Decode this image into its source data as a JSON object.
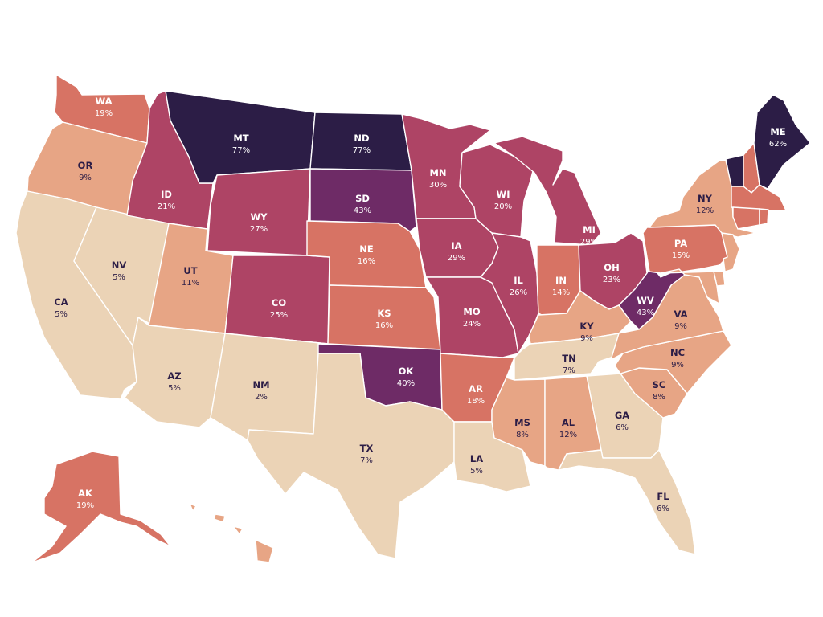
{
  "colors": {
    "t1": "#ebd3b6",
    "t2": "#e7a585",
    "t3": "#d77364",
    "t4": "#ae4465",
    "t5": "#9c3a61",
    "t6": "#6e2b66",
    "t7": "#2c1d46",
    "dark_text": "#2c1d46",
    "light_text": "#ffffff"
  },
  "states": [
    {
      "abbr": "WA",
      "value": "19%",
      "tier": "t3"
    },
    {
      "abbr": "OR",
      "value": "9%",
      "tier": "t2"
    },
    {
      "abbr": "CA",
      "value": "5%",
      "tier": "t1"
    },
    {
      "abbr": "NV",
      "value": "5%",
      "tier": "t1"
    },
    {
      "abbr": "ID",
      "value": "21%",
      "tier": "t4"
    },
    {
      "abbr": "MT",
      "value": "77%",
      "tier": "t7"
    },
    {
      "abbr": "WY",
      "value": "27%",
      "tier": "t4"
    },
    {
      "abbr": "UT",
      "value": "11%",
      "tier": "t2"
    },
    {
      "abbr": "AZ",
      "value": "5%",
      "tier": "t1"
    },
    {
      "abbr": "CO",
      "value": "25%",
      "tier": "t4"
    },
    {
      "abbr": "NM",
      "value": "2%",
      "tier": "t1"
    },
    {
      "abbr": "ND",
      "value": "77%",
      "tier": "t7"
    },
    {
      "abbr": "SD",
      "value": "43%",
      "tier": "t6"
    },
    {
      "abbr": "NE",
      "value": "16%",
      "tier": "t3"
    },
    {
      "abbr": "KS",
      "value": "16%",
      "tier": "t3"
    },
    {
      "abbr": "OK",
      "value": "40%",
      "tier": "t6"
    },
    {
      "abbr": "TX",
      "value": "7%",
      "tier": "t1"
    },
    {
      "abbr": "MN",
      "value": "30%",
      "tier": "t4"
    },
    {
      "abbr": "IA",
      "value": "29%",
      "tier": "t4"
    },
    {
      "abbr": "MO",
      "value": "24%",
      "tier": "t4"
    },
    {
      "abbr": "AR",
      "value": "18%",
      "tier": "t3"
    },
    {
      "abbr": "LA",
      "value": "5%",
      "tier": "t1"
    },
    {
      "abbr": "WI",
      "value": "20%",
      "tier": "t4"
    },
    {
      "abbr": "IL",
      "value": "26%",
      "tier": "t4"
    },
    {
      "abbr": "MI",
      "value": "29%",
      "tier": "t4"
    },
    {
      "abbr": "IN",
      "value": "14%",
      "tier": "t3"
    },
    {
      "abbr": "OH",
      "value": "23%",
      "tier": "t4"
    },
    {
      "abbr": "KY",
      "value": "9%",
      "tier": "t2"
    },
    {
      "abbr": "TN",
      "value": "7%",
      "tier": "t1"
    },
    {
      "abbr": "MS",
      "value": "8%",
      "tier": "t2"
    },
    {
      "abbr": "AL",
      "value": "12%",
      "tier": "t2"
    },
    {
      "abbr": "GA",
      "value": "6%",
      "tier": "t1"
    },
    {
      "abbr": "FL",
      "value": "6%",
      "tier": "t1"
    },
    {
      "abbr": "SC",
      "value": "8%",
      "tier": "t2"
    },
    {
      "abbr": "NC",
      "value": "9%",
      "tier": "t2"
    },
    {
      "abbr": "VA",
      "value": "9%",
      "tier": "t2"
    },
    {
      "abbr": "WV",
      "value": "43%",
      "tier": "t6"
    },
    {
      "abbr": "PA",
      "value": "15%",
      "tier": "t3"
    },
    {
      "abbr": "NY",
      "value": "12%",
      "tier": "t2"
    },
    {
      "abbr": "ME",
      "value": "62%",
      "tier": "t7"
    },
    {
      "abbr": "AK",
      "value": "19%",
      "tier": "t3"
    },
    {
      "abbr": "VT",
      "value": "",
      "tier": "t7"
    },
    {
      "abbr": "NH",
      "value": "",
      "tier": "t3"
    },
    {
      "abbr": "MA",
      "value": "",
      "tier": "t3"
    },
    {
      "abbr": "CT",
      "value": "",
      "tier": "t3"
    },
    {
      "abbr": "RI",
      "value": "",
      "tier": "t3"
    },
    {
      "abbr": "NJ",
      "value": "",
      "tier": "t2"
    },
    {
      "abbr": "DE",
      "value": "",
      "tier": "t2"
    },
    {
      "abbr": "MD",
      "value": "",
      "tier": "t2"
    },
    {
      "abbr": "HI",
      "value": "",
      "tier": "t2"
    }
  ]
}
